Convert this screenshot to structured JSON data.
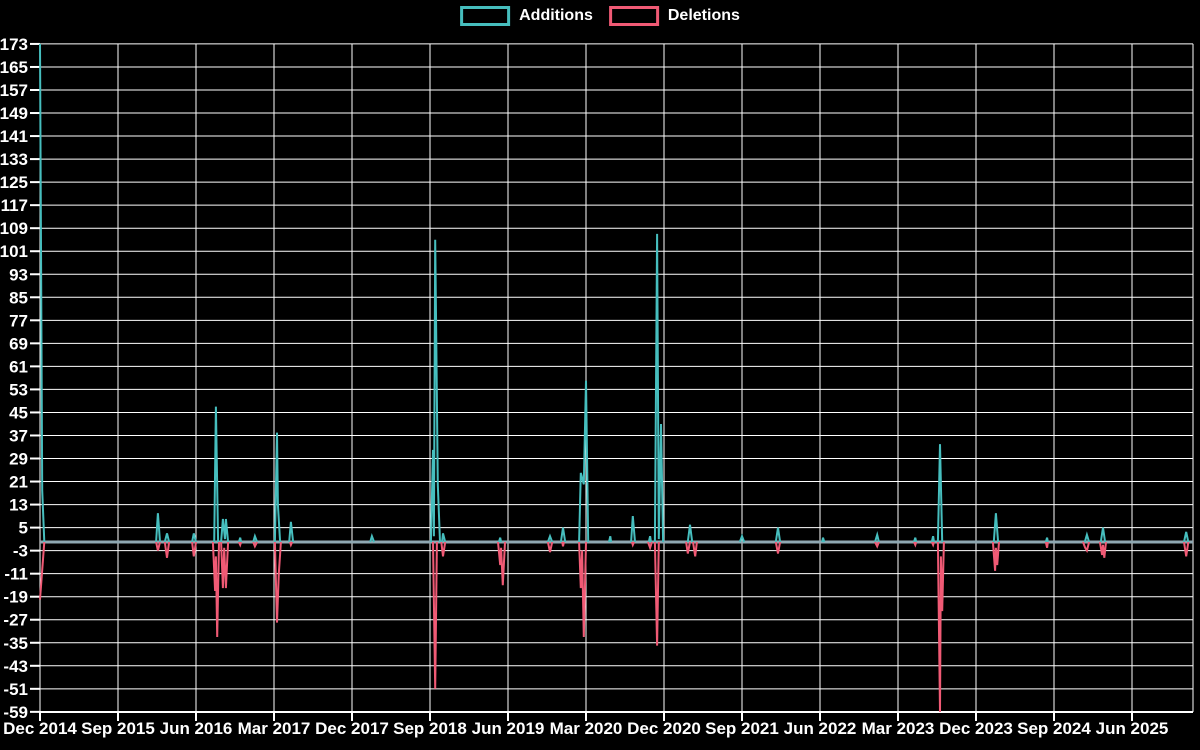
{
  "legend": [
    {
      "label": "Additions",
      "color": "#46bebe"
    },
    {
      "label": "Deletions",
      "color": "#f05a75"
    }
  ],
  "chart_data": {
    "type": "line",
    "title": "",
    "xlabel": "",
    "ylabel": "",
    "x_unit": "months since Dec 2014",
    "x_tick_labels": [
      "Dec 2014",
      "Sep 2015",
      "Jun 2016",
      "Mar 2017",
      "Dec 2017",
      "Sep 2018",
      "Jun 2019",
      "Mar 2020",
      "Dec 2020",
      "Sep 2021",
      "Jun 2022",
      "Mar 2023",
      "Dec 2023",
      "Sep 2024",
      "Jun 2025"
    ],
    "x_tick_months": [
      0,
      9,
      18,
      27,
      36,
      45,
      54,
      63,
      72,
      81,
      90,
      99,
      108,
      117,
      126
    ],
    "x_range_months": [
      0,
      133
    ],
    "y_ticks": [
      173,
      165,
      157,
      149,
      141,
      133,
      125,
      117,
      109,
      101,
      93,
      85,
      77,
      69,
      61,
      53,
      45,
      37,
      29,
      21,
      13,
      5,
      -3,
      -11,
      -19,
      -27,
      -35,
      -43,
      -51,
      -59
    ],
    "ylim": [
      -59,
      173
    ],
    "grid": true,
    "legend_position": "top-center",
    "background_color": "#000000",
    "grid_color": "#ffffff",
    "text_color": "#ffffff",
    "zero_line_color": "#8fa8b2",
    "series": [
      {
        "name": "Additions",
        "color": "#46bebe",
        "baseline_value": 0,
        "spikes": [
          [
            [
              0,
              173
            ],
            [
              0.25,
              18
            ],
            [
              0.5,
              0
            ]
          ],
          [
            [
              13.4,
              0
            ],
            [
              13.6,
              10
            ],
            [
              13.85,
              0
            ]
          ],
          [
            [
              14.4,
              0
            ],
            [
              14.65,
              3
            ],
            [
              14.9,
              0
            ]
          ],
          [
            [
              17.55,
              0
            ],
            [
              17.75,
              3
            ],
            [
              18,
              0
            ]
          ],
          [
            [
              20.1,
              0
            ],
            [
              20.3,
              47
            ],
            [
              20.55,
              0
            ]
          ],
          [
            [
              20.9,
              0
            ],
            [
              21.1,
              8
            ],
            [
              21.35,
              1
            ],
            [
              21.45,
              8
            ],
            [
              21.7,
              0
            ]
          ],
          [
            [
              22.95,
              0
            ],
            [
              23.1,
              1.5
            ],
            [
              23.2,
              0
            ]
          ],
          [
            [
              24.6,
              0
            ],
            [
              24.8,
              2
            ],
            [
              25.05,
              0
            ]
          ],
          [
            [
              27.1,
              0
            ],
            [
              27.35,
              38
            ],
            [
              27.45,
              13
            ],
            [
              27.7,
              0
            ]
          ],
          [
            [
              28.75,
              0
            ],
            [
              28.95,
              7
            ],
            [
              29.2,
              0
            ]
          ],
          [
            [
              38.1,
              0
            ],
            [
              38.3,
              2
            ],
            [
              38.55,
              0
            ]
          ],
          [
            [
              45.1,
              0
            ],
            [
              45.35,
              32
            ],
            [
              45.45,
              2
            ],
            [
              45.6,
              105
            ],
            [
              45.9,
              20
            ],
            [
              46.15,
              0
            ]
          ],
          [
            [
              46.4,
              0
            ],
            [
              46.5,
              3
            ],
            [
              46.75,
              0
            ]
          ],
          [
            [
              52.95,
              0
            ],
            [
              53.1,
              1.5
            ],
            [
              53.2,
              0
            ]
          ],
          [
            [
              58.6,
              0
            ],
            [
              58.85,
              2
            ],
            [
              59.1,
              0
            ]
          ],
          [
            [
              60.1,
              0
            ],
            [
              60.35,
              5
            ],
            [
              60.6,
              0
            ]
          ],
          [
            [
              62.2,
              0
            ],
            [
              62.4,
              24
            ],
            [
              62.75,
              20
            ],
            [
              63,
              56
            ],
            [
              63.25,
              0
            ]
          ],
          [
            [
              65.65,
              0
            ],
            [
              65.8,
              2
            ],
            [
              65.9,
              0
            ]
          ],
          [
            [
              68.2,
              0
            ],
            [
              68.4,
              9
            ],
            [
              68.65,
              0
            ]
          ],
          [
            [
              70.25,
              0
            ],
            [
              70.4,
              2
            ],
            [
              70.5,
              0
            ]
          ],
          [
            [
              70.95,
              0
            ],
            [
              71.2,
              107
            ],
            [
              71.4,
              1
            ],
            [
              71.65,
              41
            ],
            [
              71.9,
              0
            ]
          ],
          [
            [
              74.75,
              0
            ],
            [
              75,
              6
            ],
            [
              75.25,
              0
            ]
          ],
          [
            [
              80.75,
              0
            ],
            [
              81,
              2
            ],
            [
              81.25,
              0
            ]
          ],
          [
            [
              84.9,
              0
            ],
            [
              85.15,
              5
            ],
            [
              85.4,
              0
            ]
          ],
          [
            [
              90.25,
              0
            ],
            [
              90.35,
              1.5
            ],
            [
              90.5,
              0
            ]
          ],
          [
            [
              96.35,
              0
            ],
            [
              96.6,
              2.5
            ],
            [
              96.8,
              0
            ]
          ],
          [
            [
              100.85,
              0
            ],
            [
              101,
              1.5
            ],
            [
              101.1,
              0
            ]
          ],
          [
            [
              102.9,
              0
            ],
            [
              103.05,
              2
            ],
            [
              103.15,
              0
            ]
          ],
          [
            [
              103.6,
              0
            ],
            [
              103.85,
              34
            ],
            [
              104.1,
              0
            ]
          ],
          [
            [
              110.05,
              0
            ],
            [
              110.3,
              10
            ],
            [
              110.55,
              0
            ]
          ],
          [
            [
              116.05,
              0
            ],
            [
              116.2,
              1.5
            ],
            [
              116.3,
              0
            ]
          ],
          [
            [
              120.55,
              0
            ],
            [
              120.8,
              2.5
            ],
            [
              121.05,
              0
            ]
          ],
          [
            [
              122.4,
              0
            ],
            [
              122.65,
              5
            ],
            [
              122.9,
              0
            ]
          ],
          [
            [
              132,
              0
            ],
            [
              132.25,
              3.5
            ],
            [
              132.5,
              0
            ]
          ]
        ]
      },
      {
        "name": "Deletions",
        "color": "#f05a75",
        "baseline_value": 0,
        "spikes": [
          [
            [
              0,
              -20
            ],
            [
              0.5,
              0
            ]
          ],
          [
            [
              13.4,
              0
            ],
            [
              13.6,
              -3
            ],
            [
              13.85,
              0
            ]
          ],
          [
            [
              14.4,
              0
            ],
            [
              14.65,
              -5.5
            ],
            [
              14.9,
              0
            ]
          ],
          [
            [
              17.55,
              0
            ],
            [
              17.75,
              -5
            ],
            [
              18,
              0
            ]
          ],
          [
            [
              19.95,
              0
            ],
            [
              20.2,
              -17
            ],
            [
              20.3,
              -5
            ],
            [
              20.45,
              -33
            ],
            [
              20.65,
              0
            ]
          ],
          [
            [
              20.9,
              0
            ],
            [
              21.1,
              -16
            ],
            [
              21.25,
              -2
            ],
            [
              21.45,
              -16
            ],
            [
              21.7,
              0
            ]
          ],
          [
            [
              22.95,
              0
            ],
            [
              23.1,
              -1
            ],
            [
              23.2,
              0
            ]
          ],
          [
            [
              24.6,
              0
            ],
            [
              24.8,
              -1.5
            ],
            [
              25.05,
              0
            ]
          ],
          [
            [
              27.1,
              0
            ],
            [
              27.35,
              -28
            ],
            [
              27.55,
              -11
            ],
            [
              27.8,
              0
            ]
          ],
          [
            [
              28.85,
              0
            ],
            [
              28.95,
              -1
            ],
            [
              29.1,
              0
            ]
          ],
          [
            [
              45.35,
              0
            ],
            [
              45.6,
              -51
            ],
            [
              45.8,
              0
            ]
          ],
          [
            [
              46.3,
              0
            ],
            [
              46.5,
              -5
            ],
            [
              46.75,
              0
            ]
          ],
          [
            [
              52.85,
              0
            ],
            [
              53.1,
              -8
            ],
            [
              53.2,
              -2
            ],
            [
              53.4,
              -15
            ],
            [
              53.65,
              0
            ]
          ],
          [
            [
              58.6,
              0
            ],
            [
              58.85,
              -3.5
            ],
            [
              59.1,
              0
            ]
          ],
          [
            [
              60.25,
              0
            ],
            [
              60.35,
              -1.5
            ],
            [
              60.45,
              0
            ]
          ],
          [
            [
              62.2,
              0
            ],
            [
              62.4,
              -16
            ],
            [
              62.55,
              -3
            ],
            [
              62.75,
              -33
            ],
            [
              63,
              0
            ]
          ],
          [
            [
              68.3,
              0
            ],
            [
              68.4,
              -1
            ],
            [
              68.55,
              0
            ]
          ],
          [
            [
              70.15,
              0
            ],
            [
              70.4,
              -2
            ],
            [
              70.6,
              0
            ]
          ],
          [
            [
              70.95,
              0
            ],
            [
              71.2,
              -36
            ],
            [
              71.4,
              0
            ]
          ],
          [
            [
              74.55,
              0
            ],
            [
              74.75,
              -4
            ],
            [
              75,
              0
            ]
          ],
          [
            [
              75.35,
              0
            ],
            [
              75.6,
              -5
            ],
            [
              75.8,
              0
            ]
          ],
          [
            [
              84.9,
              0
            ],
            [
              85.15,
              -4
            ],
            [
              85.4,
              0
            ]
          ],
          [
            [
              96.35,
              0
            ],
            [
              96.6,
              -1.5
            ],
            [
              96.8,
              0
            ]
          ],
          [
            [
              100.85,
              0
            ],
            [
              101,
              -1
            ],
            [
              101.1,
              0
            ]
          ],
          [
            [
              102.9,
              0
            ],
            [
              103.05,
              -1
            ],
            [
              103.15,
              0
            ]
          ],
          [
            [
              103.6,
              0
            ],
            [
              103.85,
              -59
            ],
            [
              103.95,
              -5
            ],
            [
              104.1,
              -24
            ],
            [
              104.3,
              0
            ]
          ],
          [
            [
              109.95,
              0
            ],
            [
              110.2,
              -10
            ],
            [
              110.3,
              -2
            ],
            [
              110.45,
              -8
            ],
            [
              110.65,
              0
            ]
          ],
          [
            [
              116.05,
              0
            ],
            [
              116.2,
              -2
            ],
            [
              116.3,
              0
            ]
          ],
          [
            [
              120.35,
              0
            ],
            [
              120.6,
              -2
            ],
            [
              120.8,
              -3
            ],
            [
              121.05,
              0
            ]
          ],
          [
            [
              122.3,
              0
            ],
            [
              122.55,
              -4.5
            ],
            [
              122.65,
              -1
            ],
            [
              122.8,
              -5.5
            ],
            [
              123,
              0
            ]
          ],
          [
            [
              132,
              0
            ],
            [
              132.25,
              -5
            ],
            [
              132.5,
              0
            ]
          ]
        ]
      }
    ]
  }
}
